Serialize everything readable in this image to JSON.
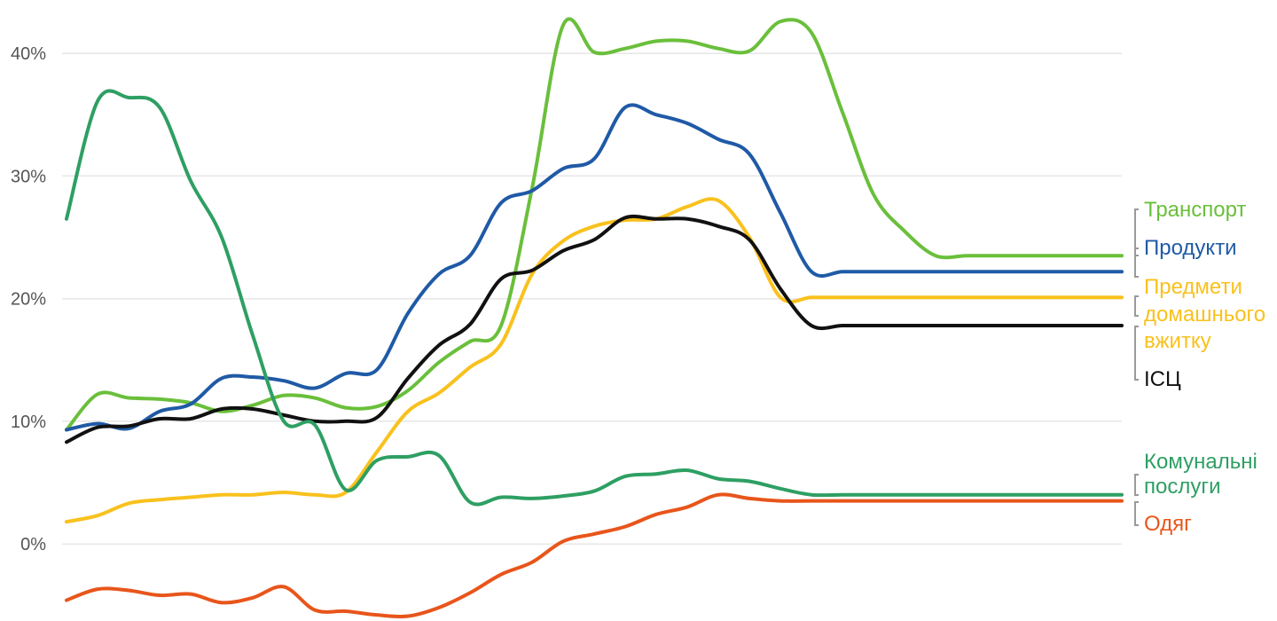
{
  "chart_data": {
    "type": "line",
    "title": "",
    "xlabel": "",
    "ylabel": "",
    "ylim": [
      -6.5,
      43.5
    ],
    "yticks": [
      0,
      10,
      20,
      30,
      40
    ],
    "ytick_labels": [
      "0%",
      "10%",
      "20%",
      "30%",
      "40%"
    ],
    "grid": true,
    "legend": "right",
    "x": [
      0,
      1,
      2,
      3,
      4,
      5,
      6,
      7,
      8,
      9,
      10,
      11,
      12,
      13,
      14,
      15,
      16,
      17,
      18,
      19,
      20,
      21,
      22,
      23,
      24,
      25,
      26,
      27,
      28,
      29,
      30,
      31,
      32,
      33,
      34
    ],
    "series": [
      {
        "name": "Транспорт",
        "color": "#6abf3b",
        "labels": [
          "Транспорт"
        ],
        "values": [
          9.3,
          12.2,
          11.9,
          11.8,
          11.5,
          10.8,
          11.3,
          12.1,
          11.9,
          11.1,
          11.2,
          12.5,
          14.8,
          16.5,
          17.8,
          29.0,
          42.3,
          40.1,
          40.4,
          41.0,
          41.0,
          40.4,
          40.2,
          42.6,
          41.7,
          35.2,
          28.5,
          25.5,
          23.5,
          23.5,
          23.5,
          23.5,
          23.5,
          23.5,
          23.5
        ]
      },
      {
        "name": "Продукти",
        "color": "#1f5aa6",
        "labels": [
          "Продукти"
        ],
        "values": [
          9.3,
          9.8,
          9.4,
          10.8,
          11.4,
          13.5,
          13.6,
          13.3,
          12.7,
          13.9,
          14.2,
          18.8,
          22.0,
          23.5,
          27.8,
          28.8,
          30.6,
          31.4,
          35.6,
          35.0,
          34.3,
          33.0,
          31.8,
          27.0,
          22.2,
          22.2,
          22.2,
          22.2,
          22.2,
          22.2,
          22.2,
          22.2,
          22.2,
          22.2,
          22.2
        ]
      },
      {
        "name": "Предмети домашнього вжитку",
        "color": "#f9c11d",
        "labels": [
          "Предмети",
          "домашнього",
          "вжитку"
        ],
        "values": [
          1.8,
          2.3,
          3.3,
          3.6,
          3.8,
          4.0,
          4.0,
          4.2,
          4.0,
          4.2,
          7.5,
          10.8,
          12.3,
          14.4,
          16.3,
          22.0,
          24.7,
          25.9,
          26.4,
          26.5,
          27.5,
          28.0,
          25.0,
          20.1,
          20.1,
          20.1,
          20.1,
          20.1,
          20.1,
          20.1,
          20.1,
          20.1,
          20.1,
          20.1,
          20.1
        ]
      },
      {
        "name": "ІСЦ",
        "color": "#111111",
        "labels": [
          "ІСЦ"
        ],
        "values": [
          8.3,
          9.5,
          9.6,
          10.2,
          10.2,
          11.0,
          11.0,
          10.5,
          10.0,
          10.0,
          10.3,
          13.5,
          16.2,
          17.9,
          21.6,
          22.3,
          23.9,
          24.8,
          26.6,
          26.5,
          26.5,
          25.9,
          24.8,
          20.8,
          17.8,
          17.8,
          17.8,
          17.8,
          17.8,
          17.8,
          17.8,
          17.8,
          17.8,
          17.8,
          17.8
        ]
      },
      {
        "name": "Комунальні послуги",
        "color": "#2e9f63",
        "labels": [
          "Комунальні",
          "послуги"
        ],
        "values": [
          26.5,
          36.1,
          36.4,
          35.6,
          29.6,
          25.0,
          17.0,
          10.0,
          9.7,
          4.4,
          6.8,
          7.1,
          7.2,
          3.4,
          3.8,
          3.7,
          3.9,
          4.3,
          5.5,
          5.7,
          6.0,
          5.3,
          5.1,
          4.5,
          4.0,
          4.0,
          4.0,
          4.0,
          4.0,
          4.0,
          4.0,
          4.0,
          4.0,
          4.0,
          4.0
        ]
      },
      {
        "name": "Одяг",
        "color": "#e8551b",
        "labels": [
          "Одяг"
        ],
        "values": [
          -4.6,
          -3.7,
          -3.8,
          -4.2,
          -4.1,
          -4.8,
          -4.4,
          -3.5,
          -5.4,
          -5.5,
          -5.8,
          -5.9,
          -5.2,
          -4.0,
          -2.5,
          -1.5,
          0.2,
          0.8,
          1.4,
          2.4,
          3.0,
          4.0,
          3.7,
          3.5,
          3.5,
          3.5,
          3.5,
          3.5,
          3.5,
          3.5,
          3.5,
          3.5,
          3.5,
          3.5,
          3.5
        ]
      }
    ]
  }
}
